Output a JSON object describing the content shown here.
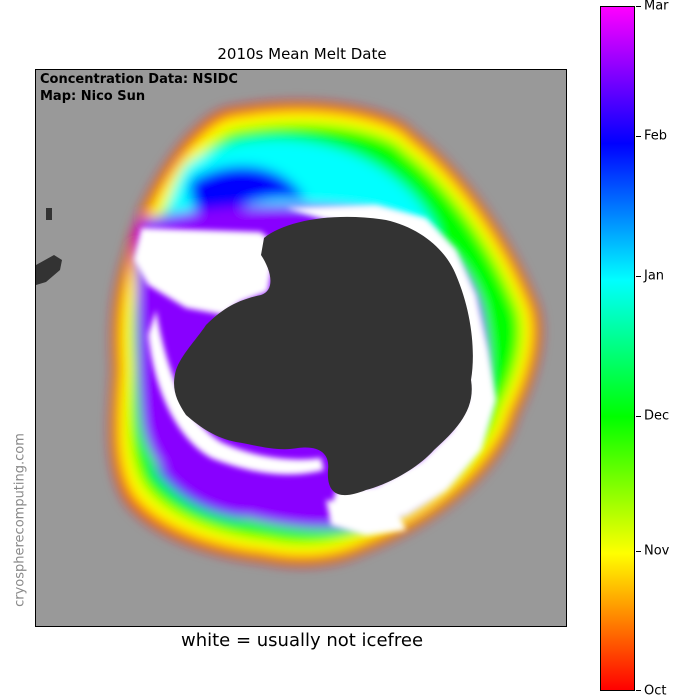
{
  "title": "2010s Mean Melt Date",
  "credits": {
    "line1": "Concentration Data: NSIDC",
    "line2": "Map: Nico Sun"
  },
  "watermark": "cryospherecomputing.com",
  "caption": "white = usually not icefree",
  "colors": {
    "ocean": "#999999",
    "land": "#333333",
    "persistent_ice": "#ffffff"
  },
  "colorbar": {
    "ticks": [
      "Oct",
      "Nov",
      "Dec",
      "Jan",
      "Feb",
      "Mar"
    ],
    "colors": [
      "#ff0000",
      "#ffff00",
      "#00ff00",
      "#00ffff",
      "#0000ff",
      "#ff00ff"
    ]
  }
}
